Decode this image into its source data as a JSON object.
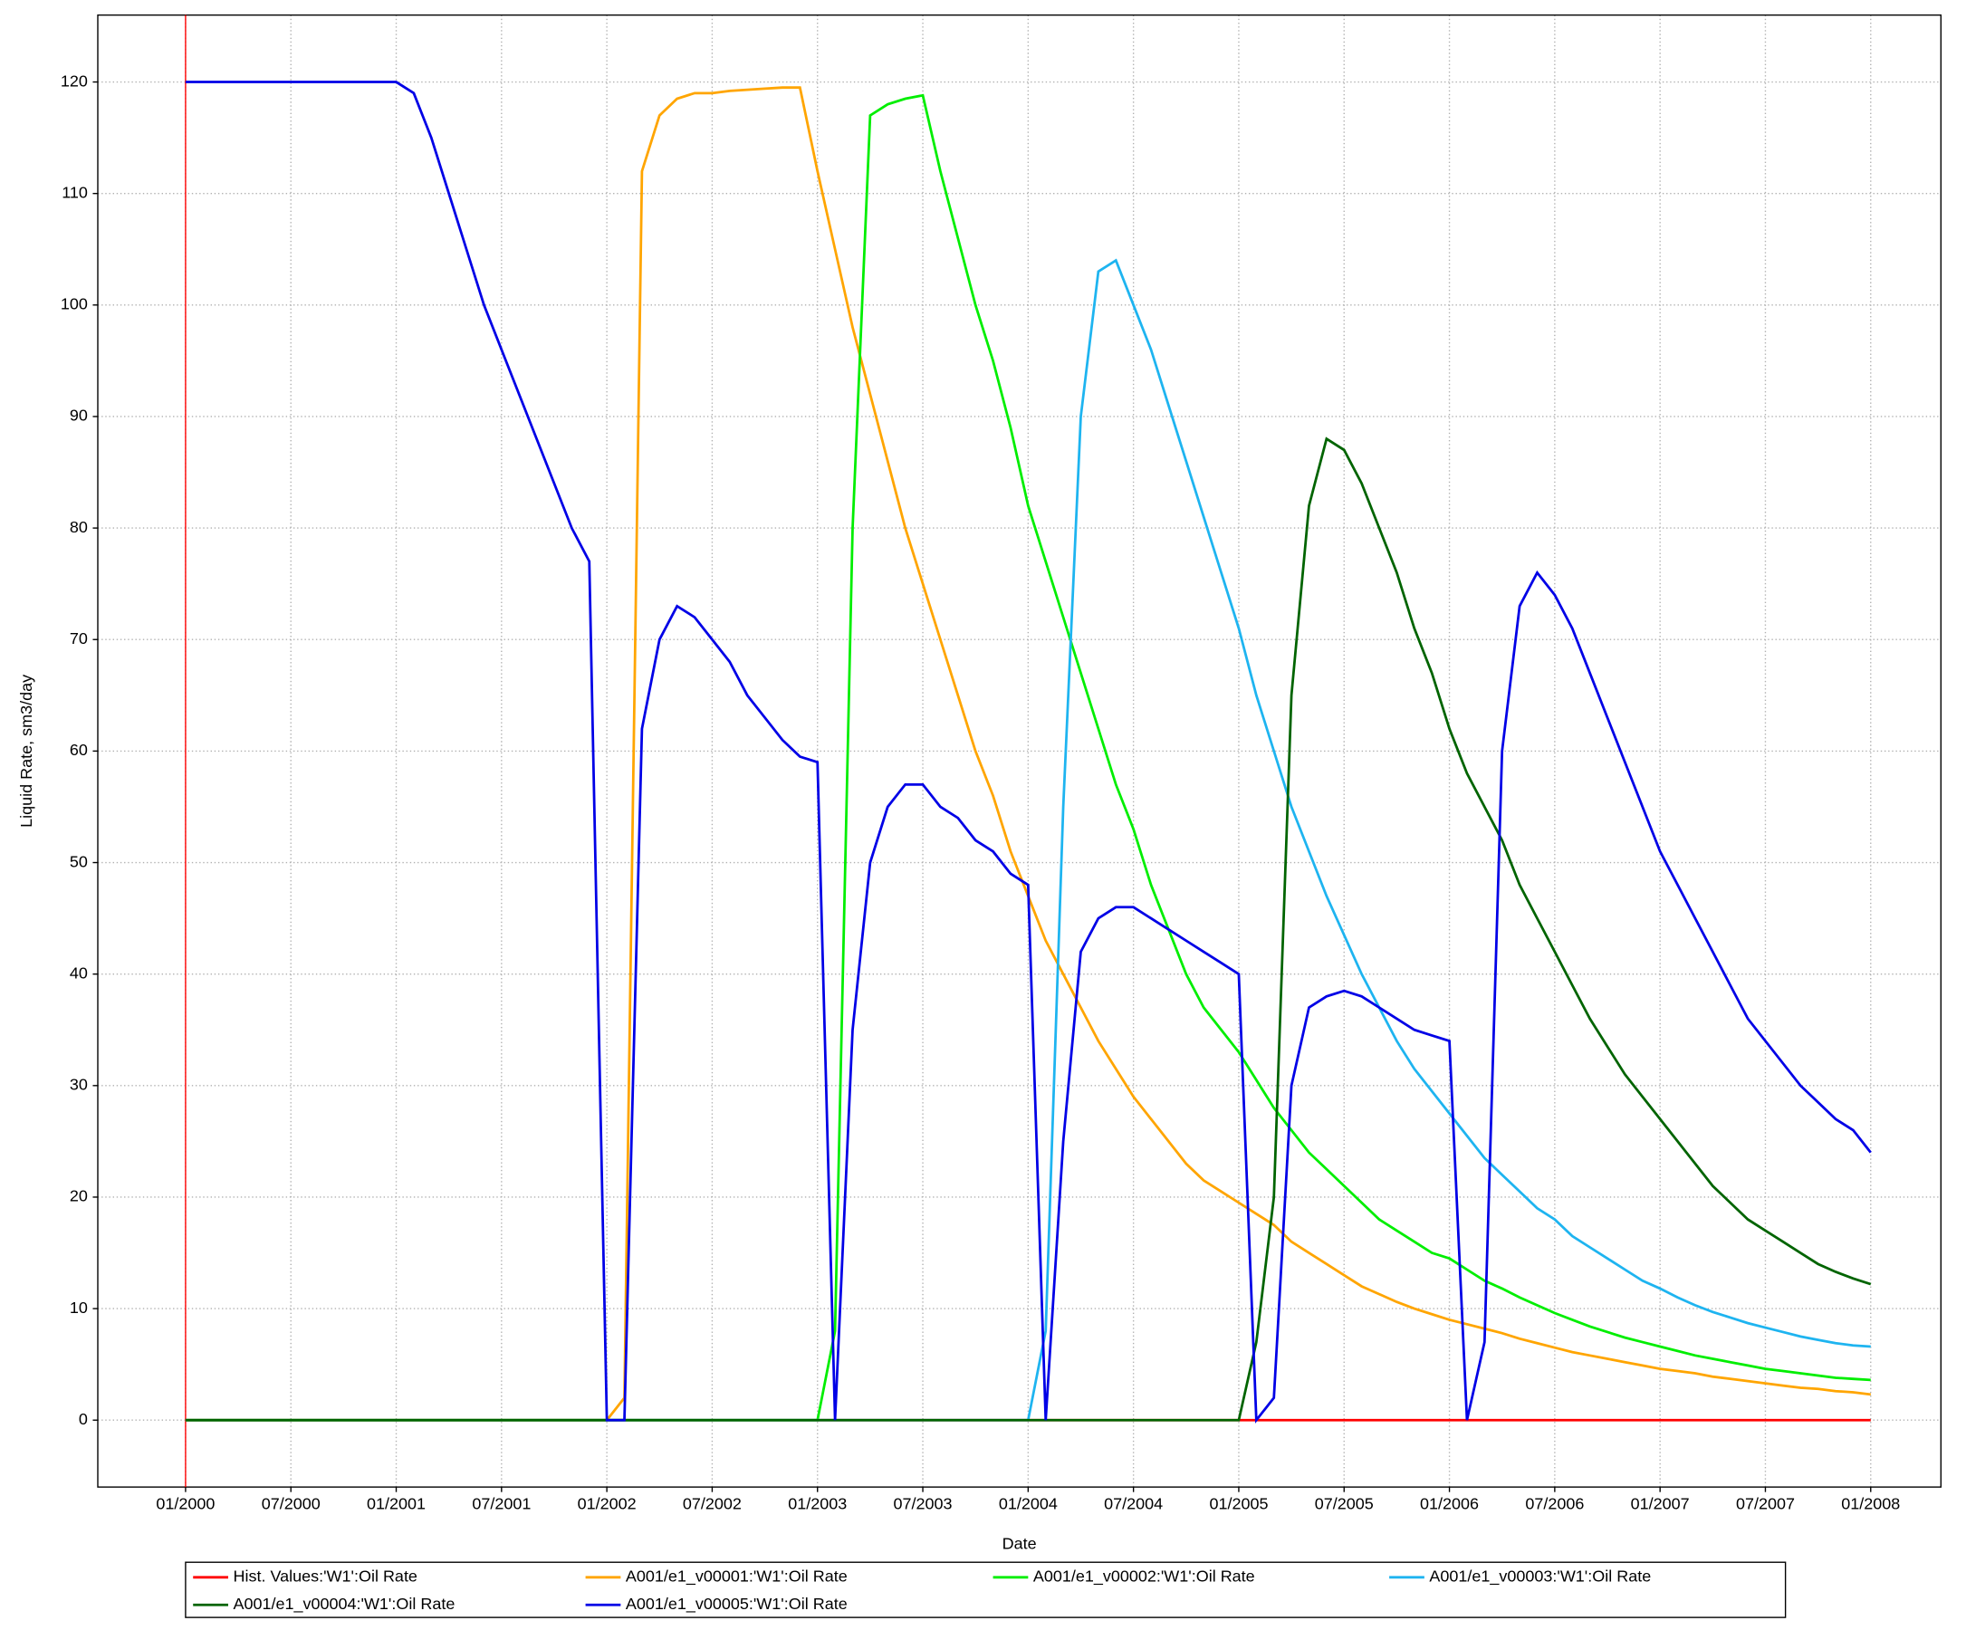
{
  "chart_data": {
    "type": "line",
    "y_label": "Liquid Rate, sm3/day",
    "x_label": "Date",
    "x": [
      "2000-01",
      "2000-02",
      "2000-03",
      "2000-04",
      "2000-05",
      "2000-06",
      "2000-07",
      "2000-08",
      "2000-09",
      "2000-10",
      "2000-11",
      "2000-12",
      "2001-01",
      "2001-02",
      "2001-03",
      "2001-04",
      "2001-05",
      "2001-06",
      "2001-07",
      "2001-08",
      "2001-09",
      "2001-10",
      "2001-11",
      "2001-12",
      "2002-01",
      "2002-02",
      "2002-03",
      "2002-04",
      "2002-05",
      "2002-06",
      "2002-07",
      "2002-08",
      "2002-09",
      "2002-10",
      "2002-11",
      "2002-12",
      "2003-01",
      "2003-02",
      "2003-03",
      "2003-04",
      "2003-05",
      "2003-06",
      "2003-07",
      "2003-08",
      "2003-09",
      "2003-10",
      "2003-11",
      "2003-12",
      "2004-01",
      "2004-02",
      "2004-03",
      "2004-04",
      "2004-05",
      "2004-06",
      "2004-07",
      "2004-08",
      "2004-09",
      "2004-10",
      "2004-11",
      "2004-12",
      "2005-01",
      "2005-02",
      "2005-03",
      "2005-04",
      "2005-05",
      "2005-06",
      "2005-07",
      "2005-08",
      "2005-09",
      "2005-10",
      "2005-11",
      "2005-12",
      "2006-01",
      "2006-02",
      "2006-03",
      "2006-04",
      "2006-05",
      "2006-06",
      "2006-07",
      "2006-08",
      "2006-09",
      "2006-10",
      "2006-11",
      "2006-12",
      "2007-01",
      "2007-02",
      "2007-03",
      "2007-04",
      "2007-05",
      "2007-06",
      "2007-07",
      "2007-08",
      "2007-09",
      "2007-10",
      "2007-11",
      "2007-12",
      "2008-01"
    ],
    "series": [
      {
        "name": "Hist. Values:'W1':Oil Rate",
        "color": "#ff0000",
        "values": [
          0,
          0,
          0,
          0,
          0,
          0,
          0,
          0,
          0,
          0,
          0,
          0,
          0,
          0,
          0,
          0,
          0,
          0,
          0,
          0,
          0,
          0,
          0,
          0,
          0,
          0,
          0,
          0,
          0,
          0,
          0,
          0,
          0,
          0,
          0,
          0,
          0,
          0,
          0,
          0,
          0,
          0,
          0,
          0,
          0,
          0,
          0,
          0,
          0,
          0,
          0,
          0,
          0,
          0,
          0,
          0,
          0,
          0,
          0,
          0,
          0,
          0,
          0,
          0,
          0,
          0,
          0,
          0,
          0,
          0,
          0,
          0,
          0,
          0,
          0,
          0,
          0,
          0,
          0,
          0,
          0,
          0,
          0,
          0,
          0,
          0,
          0,
          0,
          0,
          0,
          0,
          0,
          0,
          0,
          0,
          0,
          0
        ]
      },
      {
        "name": "A001/e1_v00001:'W1':Oil Rate",
        "color": "#ffa500",
        "values": [
          0,
          0,
          0,
          0,
          0,
          0,
          0,
          0,
          0,
          0,
          0,
          0,
          0,
          0,
          0,
          0,
          0,
          0,
          0,
          0,
          0,
          0,
          0,
          0,
          0,
          2,
          112,
          117,
          118.5,
          119,
          119,
          119.2,
          119.3,
          119.4,
          119.5,
          119.5,
          112,
          105,
          98,
          92,
          86,
          80,
          75,
          70,
          65,
          60,
          56,
          51,
          47,
          43,
          40,
          37,
          34,
          31.5,
          29,
          27,
          25,
          23,
          21.5,
          20.5,
          19.5,
          18.5,
          17.5,
          16,
          15,
          14,
          13,
          12,
          11.3,
          10.6,
          10,
          9.5,
          9,
          8.6,
          8.2,
          7.8,
          7.3,
          6.9,
          6.5,
          6.1,
          5.8,
          5.5,
          5.2,
          4.9,
          4.6,
          4.4,
          4.2,
          3.9,
          3.7,
          3.5,
          3.3,
          3.1,
          2.9,
          2.8,
          2.6,
          2.5,
          2.3
        ]
      },
      {
        "name": "A001/e1_v00002:'W1':Oil Rate",
        "color": "#00ee00",
        "values": [
          0,
          0,
          0,
          0,
          0,
          0,
          0,
          0,
          0,
          0,
          0,
          0,
          0,
          0,
          0,
          0,
          0,
          0,
          0,
          0,
          0,
          0,
          0,
          0,
          0,
          0,
          0,
          0,
          0,
          0,
          0,
          0,
          0,
          0,
          0,
          0,
          0,
          8,
          80,
          117,
          118,
          118.5,
          118.8,
          112,
          106,
          100,
          95,
          89,
          82,
          77,
          72,
          67,
          62,
          57,
          53,
          48,
          44,
          40,
          37,
          35,
          33,
          30.5,
          28,
          26,
          24,
          22.5,
          21,
          19.5,
          18,
          17,
          16,
          15,
          14.5,
          13.5,
          12.5,
          11.8,
          11,
          10.3,
          9.6,
          9,
          8.4,
          7.9,
          7.4,
          7,
          6.6,
          6.2,
          5.8,
          5.5,
          5.2,
          4.9,
          4.6,
          4.4,
          4.2,
          4,
          3.8,
          3.7,
          3.6
        ]
      },
      {
        "name": "A001/e1_v00003:'W1':Oil Rate",
        "color": "#1eb4f0",
        "values": [
          0,
          0,
          0,
          0,
          0,
          0,
          0,
          0,
          0,
          0,
          0,
          0,
          0,
          0,
          0,
          0,
          0,
          0,
          0,
          0,
          0,
          0,
          0,
          0,
          0,
          0,
          0,
          0,
          0,
          0,
          0,
          0,
          0,
          0,
          0,
          0,
          0,
          0,
          0,
          0,
          0,
          0,
          0,
          0,
          0,
          0,
          0,
          0,
          0,
          8,
          55,
          90,
          103,
          104,
          100,
          96,
          91,
          86,
          81,
          76,
          71,
          65,
          60,
          55,
          51,
          47,
          43.5,
          40,
          37,
          34,
          31.5,
          29.5,
          27.5,
          25.5,
          23.5,
          22,
          20.5,
          19,
          18,
          16.5,
          15.5,
          14.5,
          13.5,
          12.5,
          11.8,
          11,
          10.3,
          9.7,
          9.2,
          8.7,
          8.3,
          7.9,
          7.5,
          7.2,
          6.9,
          6.7,
          6.6
        ]
      },
      {
        "name": "A001/e1_v00004:'W1':Oil Rate",
        "color": "#006400",
        "values": [
          0,
          0,
          0,
          0,
          0,
          0,
          0,
          0,
          0,
          0,
          0,
          0,
          0,
          0,
          0,
          0,
          0,
          0,
          0,
          0,
          0,
          0,
          0,
          0,
          0,
          0,
          0,
          0,
          0,
          0,
          0,
          0,
          0,
          0,
          0,
          0,
          0,
          0,
          0,
          0,
          0,
          0,
          0,
          0,
          0,
          0,
          0,
          0,
          0,
          0,
          0,
          0,
          0,
          0,
          0,
          0,
          0,
          0,
          0,
          0,
          0,
          7,
          20,
          65,
          82,
          88,
          87,
          84,
          80,
          76,
          71,
          67,
          62,
          58,
          55,
          52,
          48,
          45,
          42,
          39,
          36,
          33.5,
          31,
          29,
          27,
          25,
          23,
          21,
          19.5,
          18,
          17,
          16,
          15,
          14,
          13.3,
          12.7,
          12.2
        ]
      },
      {
        "name": "A001/e1_v00005:'W1':Oil Rate",
        "color": "#0000e6",
        "values": [
          120,
          120,
          120,
          120,
          120,
          120,
          120,
          120,
          120,
          120,
          120,
          120,
          120,
          119,
          115,
          110,
          105,
          100,
          96,
          92,
          88,
          84,
          80,
          77,
          0,
          0,
          62,
          70,
          73,
          72,
          70,
          68,
          65,
          63,
          61,
          59.5,
          59,
          0,
          35,
          50,
          55,
          57,
          57,
          55,
          54,
          52,
          51,
          49,
          48,
          0,
          25,
          42,
          45,
          46,
          46,
          45,
          44,
          43,
          42,
          41,
          40,
          0,
          2,
          30,
          37,
          38,
          38.5,
          38,
          37,
          36,
          35,
          34.5,
          34,
          0,
          7,
          60,
          73,
          76,
          74,
          71,
          67,
          63,
          59,
          55,
          51,
          48,
          45,
          42,
          39,
          36,
          34,
          32,
          30,
          28.5,
          27,
          26,
          24
        ]
      }
    ],
    "xlim": [
      "1999-08",
      "2008-05"
    ],
    "xticks": [
      {
        "value": "2000-01",
        "label": "01/2000"
      },
      {
        "value": "2000-07",
        "label": "07/2000"
      },
      {
        "value": "2001-01",
        "label": "01/2001"
      },
      {
        "value": "2001-07",
        "label": "07/2001"
      },
      {
        "value": "2002-01",
        "label": "01/2002"
      },
      {
        "value": "2002-07",
        "label": "07/2002"
      },
      {
        "value": "2003-01",
        "label": "01/2003"
      },
      {
        "value": "2003-07",
        "label": "07/2003"
      },
      {
        "value": "2004-01",
        "label": "01/2004"
      },
      {
        "value": "2004-07",
        "label": "07/2004"
      },
      {
        "value": "2005-01",
        "label": "01/2005"
      },
      {
        "value": "2005-07",
        "label": "07/2005"
      },
      {
        "value": "2006-01",
        "label": "01/2006"
      },
      {
        "value": "2006-07",
        "label": "07/2006"
      },
      {
        "value": "2007-01",
        "label": "01/2007"
      },
      {
        "value": "2007-07",
        "label": "07/2007"
      },
      {
        "value": "2008-01",
        "label": "01/2008"
      }
    ],
    "ylim": [
      -6,
      126
    ],
    "yticks": [
      0,
      10,
      20,
      30,
      40,
      50,
      60,
      70,
      80,
      90,
      100,
      110,
      120
    ],
    "grid": true,
    "legend": "bottom"
  }
}
